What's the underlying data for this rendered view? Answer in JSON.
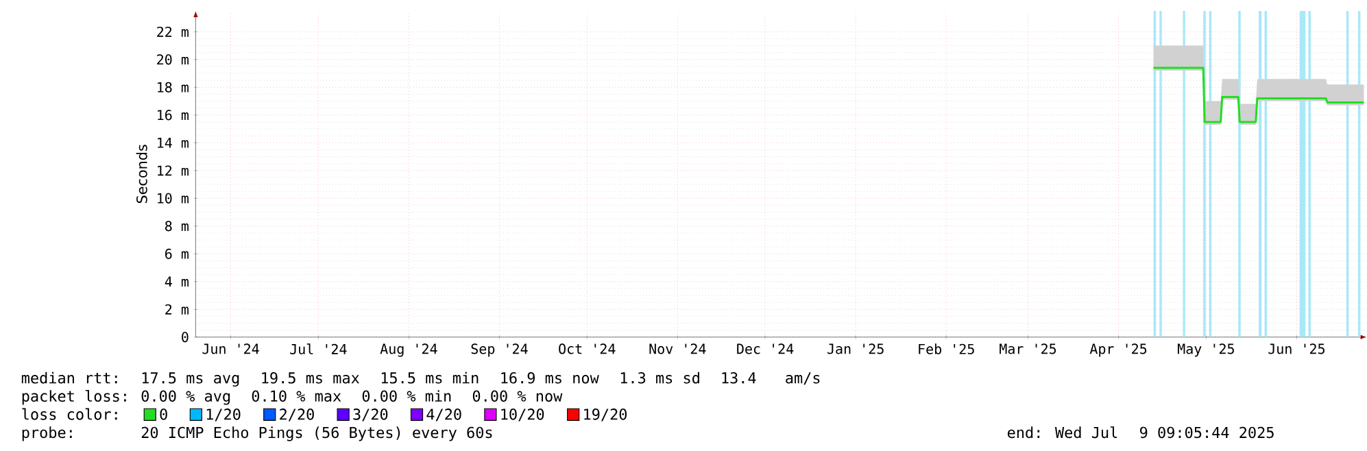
{
  "chart_data": {
    "type": "line",
    "ylabel": "Seconds",
    "x": [
      "2025-04-27",
      "2025-05-14",
      "2025-05-14T12:00",
      "2025-05-20",
      "2025-05-20T12:00",
      "2025-05-26",
      "2025-05-26T12:00",
      "2025-06-01",
      "2025-06-01T12:00",
      "2025-06-25",
      "2025-06-25T12:00",
      "2025-07-08"
    ],
    "series": [
      {
        "name": "0",
        "color": "#22dd22",
        "values": [
          19.4,
          19.4,
          15.5,
          15.5,
          17.3,
          17.3,
          15.5,
          15.5,
          17.2,
          17.2,
          16.9,
          16.9
        ],
        "upper": [
          21.0,
          21.0,
          17.0,
          17.0,
          18.6,
          18.6,
          16.8,
          16.8,
          18.6,
          18.6,
          18.2,
          18.2
        ],
        "lower": [
          19.2,
          19.2,
          15.3,
          15.3,
          17.1,
          17.1,
          15.3,
          15.3,
          17.0,
          17.0,
          16.7,
          16.7
        ]
      },
      {
        "name": "1/20",
        "color": "#00b8ff",
        "values": [
          null,
          null,
          null,
          null,
          null,
          null,
          null,
          null,
          null,
          null,
          null,
          null
        ]
      },
      {
        "name": "2/20",
        "color": "#0059ff",
        "values": [
          null,
          null,
          null,
          null,
          null,
          null,
          null,
          null,
          null,
          null,
          null,
          null
        ]
      },
      {
        "name": "3/20",
        "color": "#5e00ff",
        "values": [
          null,
          null,
          null,
          null,
          null,
          null,
          null,
          null,
          null,
          null,
          null,
          null
        ]
      },
      {
        "name": "4/20",
        "color": "#7e00ff",
        "values": [
          null,
          null,
          null,
          null,
          null,
          null,
          null,
          null,
          null,
          null,
          null,
          null
        ]
      },
      {
        "name": "10/20",
        "color": "#dd00ff",
        "values": [
          null,
          null,
          null,
          null,
          null,
          null,
          null,
          null,
          null,
          null,
          null,
          null
        ]
      },
      {
        "name": "19/20",
        "color": "#ff0000",
        "values": [
          null,
          null,
          null,
          null,
          null,
          null,
          null,
          null,
          null,
          null,
          null,
          null
        ]
      }
    ],
    "bands": [
      {
        "axis": "x",
        "from": "2025-04-27",
        "to": "2025-04-27T20:00",
        "color": "#a8e8f8"
      },
      {
        "axis": "x",
        "from": "2025-04-29",
        "to": "2025-04-29T20:00",
        "color": "#a8e8f8"
      },
      {
        "axis": "x",
        "from": "2025-05-07",
        "to": "2025-05-07T20:00",
        "color": "#a8e8f8"
      },
      {
        "axis": "x",
        "from": "2025-05-14",
        "to": "2025-05-14T20:00",
        "color": "#a8e8f8"
      },
      {
        "axis": "x",
        "from": "2025-05-16",
        "to": "2025-05-16T20:00",
        "color": "#a8e8f8"
      },
      {
        "axis": "x",
        "from": "2025-05-26",
        "to": "2025-05-26T20:00",
        "color": "#a8e8f8"
      },
      {
        "axis": "x",
        "from": "2025-06-02",
        "to": "2025-06-03",
        "color": "#a8e8f8"
      },
      {
        "axis": "x",
        "from": "2025-06-04",
        "to": "2025-06-04T20:00",
        "color": "#a8e8f8"
      },
      {
        "axis": "x",
        "from": "2025-06-16",
        "to": "2025-06-18",
        "color": "#a8e8f8"
      },
      {
        "axis": "x",
        "from": "2025-06-19",
        "to": "2025-06-19T20:00",
        "color": "#a8e8f8"
      },
      {
        "axis": "x",
        "from": "2025-07-02",
        "to": "2025-07-02T20:00",
        "color": "#a8e8f8"
      },
      {
        "axis": "x",
        "from": "2025-07-06",
        "to": "2025-07-06T20:00",
        "color": "#a8e8f8"
      }
    ],
    "xlim": [
      "2024-06-03",
      "2025-07-09"
    ],
    "xticks": [
      {
        "value": "2024-06-15",
        "label": "Jun '24"
      },
      {
        "value": "2024-07-15",
        "label": "Jul '24"
      },
      {
        "value": "2024-08-15",
        "label": "Aug '24"
      },
      {
        "value": "2024-09-15",
        "label": "Sep '24"
      },
      {
        "value": "2024-10-15",
        "label": "Oct '24"
      },
      {
        "value": "2024-11-15",
        "label": "Nov '24"
      },
      {
        "value": "2024-12-15",
        "label": "Dec '24"
      },
      {
        "value": "2025-01-15",
        "label": "Jan '25"
      },
      {
        "value": "2025-02-15",
        "label": "Feb '25"
      },
      {
        "value": "2025-03-15",
        "label": "Mar '25"
      },
      {
        "value": "2025-04-15",
        "label": "Apr '25"
      },
      {
        "value": "2025-05-15",
        "label": "May '25"
      },
      {
        "value": "2025-06-15",
        "label": "Jun '25"
      }
    ],
    "ylim": [
      0,
      23.5
    ],
    "yticks": [
      0,
      {
        "value": 2,
        "label": "2 m"
      },
      {
        "value": 4,
        "label": "4 m"
      },
      {
        "value": 6,
        "label": "6 m"
      },
      {
        "value": 8,
        "label": "8 m"
      },
      {
        "value": 10,
        "label": "10 m"
      },
      {
        "value": 12,
        "label": "12 m"
      },
      {
        "value": 14,
        "label": "14 m"
      },
      {
        "value": 16,
        "label": "16 m"
      },
      {
        "value": 18,
        "label": "18 m"
      },
      {
        "value": 20,
        "label": "20 m"
      },
      {
        "value": 22,
        "label": "22 m"
      }
    ],
    "grid": true,
    "legend": "bottom",
    "marker": "none",
    "line_style": "solid",
    "annotations": [
      "median rtt:",
      "17.5 ms avg",
      "19.5 ms max",
      "15.5 ms min",
      "16.9 ms now",
      "1.3 ms sd",
      "13.4",
      "am/s",
      "packet loss:",
      "0.00 % avg",
      "0.10 % max",
      "0.00 % min",
      "0.00 % now",
      "loss color:",
      "probe:",
      "20 ICMP Echo Pings (56 Bytes) every 60s",
      "end: Wed Jul",
      "9 09:05:44 2025"
    ]
  }
}
